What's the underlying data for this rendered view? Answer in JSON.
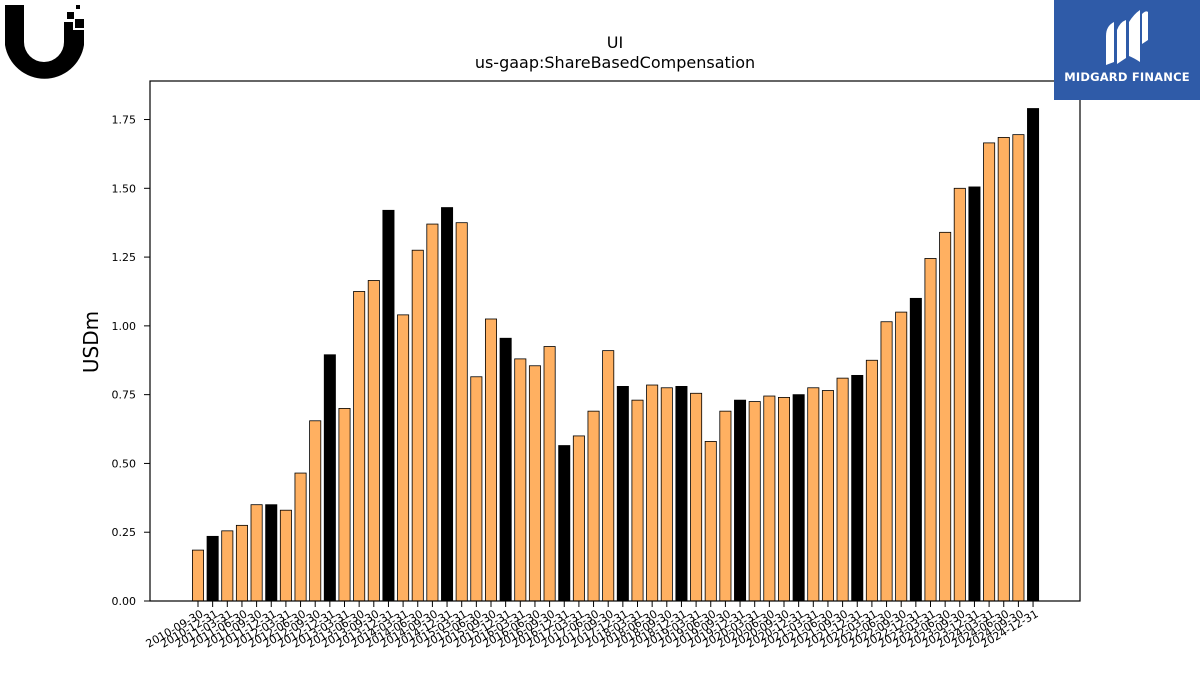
{
  "brand": {
    "name": "MIDGARD FINANCE",
    "color": "#2f5ba8",
    "left_logo": "ubiquiti-u-logo"
  },
  "chart_data": {
    "type": "bar",
    "title": "UI",
    "subtitle": "us-gaap:ShareBasedCompensation",
    "xlabel": "",
    "ylabel": "USDm",
    "ylim": [
      0,
      1.89
    ],
    "yticks": [
      "0.00",
      "0.25",
      "0.50",
      "0.75",
      "1.00",
      "1.25",
      "1.50",
      "1.75"
    ],
    "grid": false,
    "colors": {
      "quarter": "#ffb061",
      "fiscal_year_end": "#000000",
      "edge": "#000000"
    },
    "categories": [
      "2010-09-30",
      "2010-12-31",
      "2011-03-31",
      "2011-06-30",
      "2011-09-30",
      "2011-12-31",
      "2012-03-31",
      "2012-06-30",
      "2012-09-30",
      "2012-12-31",
      "2013-03-31",
      "2013-06-30",
      "2013-09-30",
      "2013-12-31",
      "2014-03-31",
      "2014-06-30",
      "2014-09-30",
      "2014-12-31",
      "2015-03-31",
      "2015-06-30",
      "2015-09-30",
      "2015-12-31",
      "2016-03-31",
      "2016-06-30",
      "2016-09-30",
      "2016-12-31",
      "2017-03-31",
      "2017-06-30",
      "2017-09-30",
      "2017-12-31",
      "2018-03-31",
      "2018-06-30",
      "2018-09-30",
      "2018-12-31",
      "2019-03-31",
      "2019-06-30",
      "2019-09-30",
      "2019-12-31",
      "2020-03-31",
      "2020-06-30",
      "2020-09-30",
      "2020-12-31",
      "2021-03-31",
      "2021-06-30",
      "2021-09-30",
      "2021-12-31",
      "2022-03-31",
      "2022-06-30",
      "2022-09-30",
      "2022-12-31",
      "2023-03-31",
      "2023-06-30",
      "2023-09-30",
      "2023-12-31",
      "2024-03-31",
      "2024-06-30",
      "2024-09-30",
      "2024-12-31"
    ],
    "values": [
      0.185,
      0.235,
      0.255,
      0.275,
      0.35,
      0.35,
      0.33,
      0.465,
      0.655,
      0.895,
      0.7,
      1.125,
      1.165,
      1.42,
      1.04,
      1.275,
      1.37,
      1.43,
      1.375,
      0.815,
      1.025,
      0.955,
      0.88,
      0.855,
      0.925,
      0.565,
      0.6,
      0.69,
      0.91,
      0.78,
      0.73,
      0.785,
      0.775,
      0.78,
      0.755,
      0.58,
      0.69,
      0.73,
      0.725,
      0.745,
      0.74,
      0.75,
      0.775,
      0.765,
      0.81,
      0.82,
      0.875,
      1.015,
      1.05,
      1.1,
      1.245,
      1.34,
      1.5,
      1.505,
      1.665,
      1.685,
      1.695,
      1.79
    ],
    "highlight": [
      false,
      true,
      false,
      false,
      false,
      true,
      false,
      false,
      false,
      true,
      false,
      false,
      false,
      true,
      false,
      false,
      false,
      true,
      false,
      false,
      false,
      true,
      false,
      false,
      false,
      true,
      false,
      false,
      false,
      true,
      false,
      false,
      false,
      true,
      false,
      false,
      false,
      true,
      false,
      false,
      false,
      true,
      false,
      false,
      false,
      true,
      false,
      false,
      false,
      true,
      false,
      false,
      false,
      true,
      false,
      false,
      false,
      true
    ]
  }
}
